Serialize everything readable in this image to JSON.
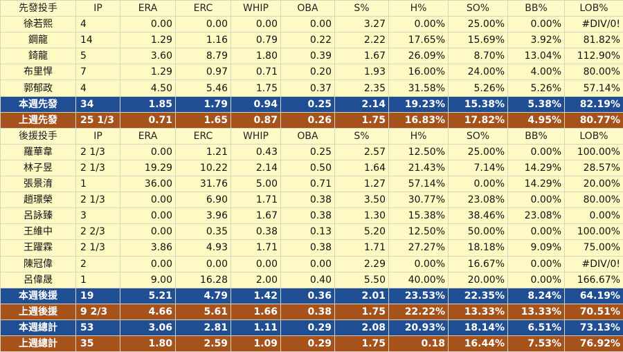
{
  "columns": [
    "IP",
    "ERA",
    "ERC",
    "WHIP",
    "OBA",
    "S%",
    "H%",
    "SO%",
    "BB%",
    "LOB%"
  ],
  "colors": {
    "row_bg": "#fff9c4",
    "header_bg": "#fffbc8",
    "blue": "#1f4e93",
    "brown": "#a5521b"
  },
  "rows": [
    {
      "kind": "hdr",
      "cells": [
        "先發投手",
        "IP",
        "ERA",
        "ERC",
        "WHIP",
        "OBA",
        "S%",
        "H%",
        "SO%",
        "BB%",
        "LOB%"
      ]
    },
    {
      "kind": "row",
      "cells": [
        "徐若熙",
        "4",
        "0.00",
        "0.00",
        "0.00",
        "0.00",
        "3.27",
        "0.00%",
        "25.00%",
        "0.00%",
        "#DIV/0!"
      ]
    },
    {
      "kind": "row",
      "cells": [
        "鋼龍",
        "14",
        "1.29",
        "1.16",
        "0.79",
        "0.22",
        "2.22",
        "17.65%",
        "15.69%",
        "3.92%",
        "81.82%"
      ]
    },
    {
      "kind": "row",
      "cells": [
        "錡龍",
        "5",
        "3.60",
        "8.79",
        "1.80",
        "0.39",
        "1.67",
        "26.09%",
        "8.70%",
        "13.04%",
        "112.90%"
      ]
    },
    {
      "kind": "row",
      "cells": [
        "布里悍",
        "7",
        "1.29",
        "0.97",
        "0.71",
        "0.20",
        "1.93",
        "16.00%",
        "24.00%",
        "4.00%",
        "80.00%"
      ]
    },
    {
      "kind": "row",
      "cells": [
        "郭郁政",
        "4",
        "4.50",
        "5.46",
        "1.75",
        "0.37",
        "2.35",
        "31.58%",
        "5.26%",
        "5.26%",
        "57.14%"
      ]
    },
    {
      "kind": "blue",
      "cells": [
        "本週先發",
        "34",
        "1.85",
        "1.79",
        "0.94",
        "0.25",
        "2.14",
        "19.23%",
        "15.38%",
        "5.38%",
        "82.19%"
      ]
    },
    {
      "kind": "brown",
      "cells": [
        "上週先發",
        "25 1/3",
        "0.71",
        "1.65",
        "0.87",
        "0.26",
        "1.75",
        "16.83%",
        "17.82%",
        "4.95%",
        "80.77%"
      ]
    },
    {
      "kind": "hdr",
      "cells": [
        "後援投手",
        "IP",
        "ERA",
        "ERC",
        "WHIP",
        "OBA",
        "S%",
        "H%",
        "SO%",
        "BB%",
        "LOB%"
      ]
    },
    {
      "kind": "row",
      "cells": [
        "羅華韋",
        "2 1/3",
        "0.00",
        "1.21",
        "0.43",
        "0.25",
        "2.57",
        "12.50%",
        "25.00%",
        "0.00%",
        "100.00%"
      ]
    },
    {
      "kind": "row",
      "cells": [
        "林子昱",
        "2 1/3",
        "19.29",
        "10.22",
        "2.14",
        "0.50",
        "1.64",
        "21.43%",
        "7.14%",
        "14.29%",
        "28.57%"
      ]
    },
    {
      "kind": "row",
      "cells": [
        "張景淯",
        "1",
        "36.00",
        "31.76",
        "5.00",
        "0.71",
        "1.27",
        "57.14%",
        "0.00%",
        "14.29%",
        "20.00%"
      ]
    },
    {
      "kind": "row",
      "cells": [
        "趙璟榮",
        "2 1/3",
        "0.00",
        "6.90",
        "1.71",
        "0.38",
        "3.50",
        "30.77%",
        "23.08%",
        "0.00%",
        "80.00%"
      ]
    },
    {
      "kind": "row",
      "cells": [
        "呂詠臻",
        "3",
        "0.00",
        "3.96",
        "1.67",
        "0.38",
        "1.30",
        "15.38%",
        "38.46%",
        "23.08%",
        "0.00%"
      ]
    },
    {
      "kind": "row",
      "cells": [
        "王維中",
        "2 2/3",
        "0.00",
        "0.35",
        "0.38",
        "0.13",
        "5.20",
        "12.50%",
        "50.00%",
        "0.00%",
        "100.00%"
      ]
    },
    {
      "kind": "row",
      "cells": [
        "王躍霖",
        "2 1/3",
        "3.86",
        "4.93",
        "1.71",
        "0.38",
        "1.71",
        "27.27%",
        "18.18%",
        "9.09%",
        "75.00%"
      ]
    },
    {
      "kind": "row",
      "cells": [
        "陳冠偉",
        "2",
        "0.00",
        "0.00",
        "0.00",
        "0.00",
        "2.29",
        "0.00%",
        "16.67%",
        "0.00%",
        "#DIV/0!"
      ]
    },
    {
      "kind": "row",
      "cells": [
        "呂偉晟",
        "1",
        "9.00",
        "16.28",
        "2.00",
        "0.40",
        "5.50",
        "40.00%",
        "20.00%",
        "0.00%",
        "166.67%"
      ]
    },
    {
      "kind": "blue",
      "cells": [
        "本週後援",
        "19",
        "5.21",
        "4.79",
        "1.42",
        "0.36",
        "2.01",
        "23.53%",
        "22.35%",
        "8.24%",
        "64.19%"
      ]
    },
    {
      "kind": "brown",
      "cells": [
        "上週後援",
        "9 2/3",
        "4.66",
        "5.61",
        "1.66",
        "0.38",
        "1.75",
        "22.22%",
        "13.33%",
        "13.33%",
        "70.51%"
      ]
    },
    {
      "kind": "blue",
      "cells": [
        "本週總計",
        "53",
        "3.06",
        "2.81",
        "1.11",
        "0.29",
        "2.08",
        "20.93%",
        "18.14%",
        "6.51%",
        "73.13%"
      ]
    },
    {
      "kind": "brown",
      "cells": [
        "上週總計",
        "35",
        "1.80",
        "2.59",
        "1.09",
        "0.29",
        "1.75",
        "0.18",
        "16.44%",
        "7.53%",
        "76.92%"
      ]
    }
  ]
}
